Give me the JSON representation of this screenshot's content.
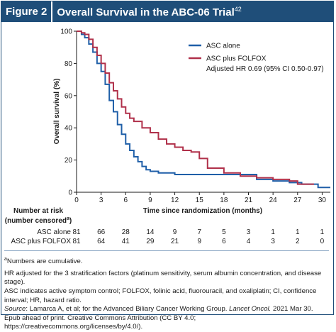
{
  "figure": {
    "label": "Figure 2",
    "title": "Overall Survival in the ABC-06 Trial",
    "title_ref": "42"
  },
  "chart_data": {
    "type": "line",
    "title": "",
    "xlabel": "Time since randomization (months)",
    "ylabel": "Overall survival (%)",
    "xlim": [
      0,
      31
    ],
    "ylim": [
      0,
      100
    ],
    "xticks": [
      0,
      3,
      6,
      9,
      12,
      15,
      18,
      21,
      24,
      27,
      30
    ],
    "yticks": [
      0,
      20,
      40,
      60,
      80,
      100
    ],
    "grid": false,
    "legend_position": "top-right",
    "annotation": "Adjusted HR 0.69 (95% CI 0.50-0.97)",
    "series": [
      {
        "name": "ASC alone",
        "color": "#1f5fa8",
        "x": [
          0,
          0.6,
          1.0,
          1.5,
          2.0,
          2.5,
          3.0,
          3.5,
          4.0,
          4.5,
          5.0,
          5.5,
          6.0,
          6.5,
          7.0,
          7.5,
          8.0,
          8.5,
          9.0,
          10.0,
          11.0,
          12.0,
          14.0,
          16.0,
          18.0,
          20.0,
          22.0,
          24.0,
          26.0,
          27.5,
          29.5,
          31.0
        ],
        "y": [
          100,
          98,
          96,
          92,
          87,
          80,
          75,
          67,
          57,
          50,
          42,
          36,
          30,
          26,
          22,
          19,
          16,
          14,
          13,
          12,
          12,
          11,
          11,
          11,
          11,
          11,
          8,
          7,
          6,
          5,
          3,
          3
        ]
      },
      {
        "name": "ASC plus FOLFOX",
        "color": "#b0304a",
        "x": [
          0,
          0.6,
          1.0,
          1.5,
          2.0,
          2.5,
          3.0,
          3.5,
          4.0,
          4.5,
          5.0,
          5.5,
          6.0,
          6.5,
          7.0,
          8.0,
          9.0,
          10.0,
          11.0,
          12.0,
          13.0,
          14.0,
          15.0,
          16.0,
          18.0,
          20.0,
          22.0,
          24.0,
          26.0,
          27.0,
          29.0
        ],
        "y": [
          100,
          99,
          98,
          95,
          90,
          85,
          80,
          74,
          68,
          63,
          58,
          53,
          49,
          46,
          44,
          40,
          37,
          33,
          30,
          28,
          26,
          25,
          21,
          15,
          12,
          10,
          9,
          8,
          7,
          5,
          5
        ]
      }
    ],
    "risk_table": {
      "header": "Number at risk",
      "subheader": "(number censored",
      "subheader_sup": "a",
      "subheader_close": ")",
      "rows": [
        {
          "label": "ASC alone",
          "values": [
            "81",
            "66",
            "28",
            "14",
            "9",
            "7",
            "5",
            "3",
            "1",
            "1",
            "1"
          ]
        },
        {
          "label": "ASC plus FOLFOX",
          "values": [
            "81",
            "64",
            "41",
            "29",
            "21",
            "9",
            "6",
            "4",
            "3",
            "2",
            "0"
          ]
        }
      ]
    }
  },
  "footnotes": {
    "note_a_sup": "a",
    "note_a": "Numbers are cumulative.",
    "hr_note": "HR adjusted for the 3 stratification factors (platinum sensitivity, serum albumin concentration, and disease stage).",
    "abbrev": "ASC indicates active symptom control; FOLFOX, folinic acid, fluorouracil, and oxaliplatin; CI, confidence interval; HR, hazard ratio.",
    "source_label": "Source",
    "source_text": ": Lamarca A, et al; for the Advanced Biliary Cancer Working Group. ",
    "source_journal": "Lancet Oncol.",
    "source_rest": " 2021 Mar 30. Epub ahead of print. Creative Commons Attribution (CC BY 4.0; https://creativecommons.org/licenses/by/4.0/)."
  }
}
